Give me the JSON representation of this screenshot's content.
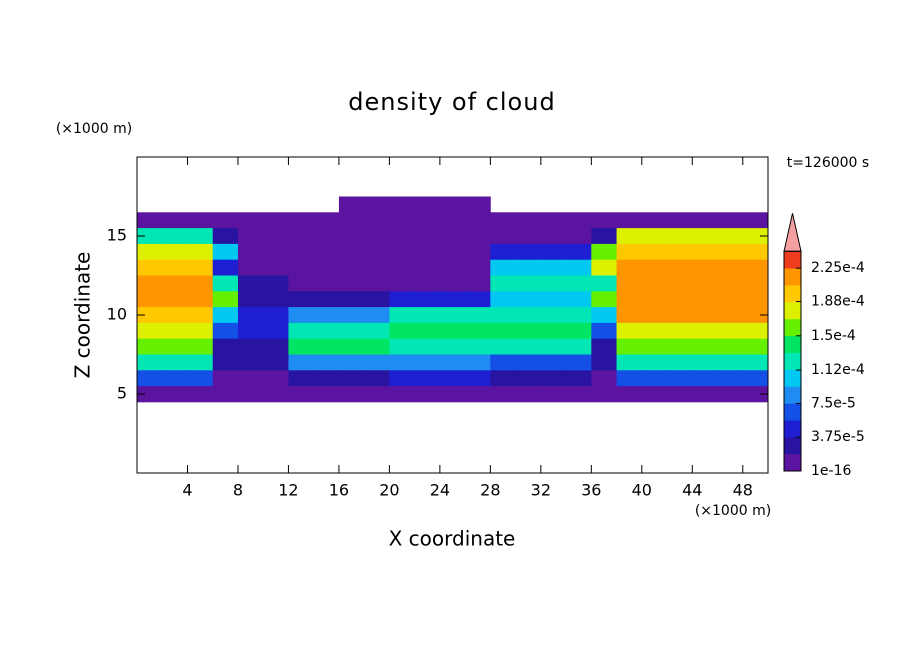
{
  "chart_data": {
    "type": "contour",
    "title": "density of cloud",
    "x_label": "X coordinate",
    "y_label": "Z coordinate",
    "x_unit": "(×1000 m)",
    "y_unit": "(×1000 m)",
    "time_label": "t=126000 s",
    "xlim": [
      0,
      50
    ],
    "ylim": [
      0,
      20
    ],
    "xticks": [
      4,
      8,
      12,
      16,
      20,
      24,
      28,
      32,
      36,
      40,
      44,
      48
    ],
    "yticks": [
      5,
      10,
      15
    ],
    "x": [
      1,
      3,
      5,
      7,
      9,
      11,
      13,
      15,
      17,
      19,
      21,
      23,
      25,
      27,
      29,
      31,
      33,
      35,
      37,
      39,
      41,
      43,
      45,
      47,
      49
    ],
    "y": [
      17,
      16,
      15,
      14,
      13,
      12,
      11,
      10,
      9,
      8,
      7,
      6,
      5
    ],
    "z": [
      [
        null,
        null,
        null,
        null,
        null,
        null,
        null,
        null,
        1e-05,
        1e-05,
        1e-05,
        1e-05,
        1e-05,
        1e-05,
        null,
        null,
        null,
        null,
        null,
        null,
        null,
        null,
        null,
        null,
        null
      ],
      [
        1e-05,
        1e-05,
        1e-05,
        1e-05,
        1e-05,
        1e-05,
        1e-05,
        1e-05,
        1e-05,
        1e-05,
        1e-05,
        1e-05,
        1e-05,
        1e-05,
        1e-05,
        1e-05,
        1e-05,
        1e-05,
        1e-05,
        1e-05,
        1e-05,
        1e-05,
        1e-05,
        1e-05,
        1e-05
      ],
      [
        0.00012,
        0.00012,
        0.00012,
        2e-05,
        1e-05,
        1e-05,
        1e-05,
        1e-05,
        1e-05,
        1e-05,
        1e-05,
        1e-05,
        1e-05,
        1e-05,
        1e-05,
        1e-05,
        1e-05,
        1e-05,
        2e-05,
        0.00017,
        0.00017,
        0.00017,
        0.00017,
        0.00017,
        0.00017
      ],
      [
        0.00018,
        0.00018,
        0.00018,
        0.0001,
        1e-05,
        1e-05,
        1e-05,
        1e-05,
        1e-05,
        1e-05,
        1e-05,
        1e-05,
        1e-05,
        1e-05,
        5e-05,
        5e-05,
        5e-05,
        5e-05,
        0.00016,
        0.00019,
        0.00019,
        0.00019,
        0.00019,
        0.00019,
        0.00019
      ],
      [
        0.00019,
        0.00019,
        0.00019,
        4e-05,
        1e-05,
        1e-05,
        1e-05,
        1e-05,
        1e-05,
        1e-05,
        1e-05,
        1e-05,
        1e-05,
        1e-05,
        0.0001,
        0.0001,
        0.0001,
        0.0001,
        0.00018,
        0.00021,
        0.00021,
        0.00021,
        0.00021,
        0.00021,
        0.00021
      ],
      [
        0.00021,
        0.00021,
        0.00021,
        0.00013,
        2e-05,
        2e-05,
        1e-05,
        1e-05,
        1e-05,
        1e-05,
        1e-05,
        1e-05,
        1e-05,
        1e-05,
        0.00013,
        0.00013,
        0.00013,
        0.00013,
        0.00012,
        0.00021,
        0.00021,
        0.00021,
        0.00021,
        0.00021,
        0.00021
      ],
      [
        0.00021,
        0.00021,
        0.00021,
        0.00015,
        3e-05,
        3e-05,
        2e-05,
        2e-05,
        2e-05,
        2e-05,
        5e-05,
        5e-05,
        5e-05,
        5e-05,
        0.00011,
        0.00011,
        0.00011,
        0.00011,
        0.00015,
        0.00021,
        0.00021,
        0.00021,
        0.00021,
        0.00021,
        0.00021
      ],
      [
        0.00019,
        0.00019,
        0.00019,
        0.0001,
        5e-05,
        5e-05,
        8e-05,
        8e-05,
        8e-05,
        8e-05,
        0.00012,
        0.00012,
        0.00012,
        0.00012,
        0.00013,
        0.00013,
        0.00013,
        0.00013,
        0.0001,
        0.00021,
        0.00021,
        0.00021,
        0.00021,
        0.00021,
        0.00021
      ],
      [
        0.00018,
        0.00018,
        0.00018,
        6e-05,
        4e-05,
        4e-05,
        0.00013,
        0.00013,
        0.00013,
        0.00013,
        0.000145,
        0.000145,
        0.000145,
        0.000145,
        0.00014,
        0.00014,
        0.00014,
        0.00014,
        6e-05,
        0.000185,
        0.000185,
        0.000185,
        0.000185,
        0.000185,
        0.000185
      ],
      [
        0.00016,
        0.00016,
        0.00016,
        3e-05,
        3e-05,
        3e-05,
        0.00014,
        0.00014,
        0.00014,
        0.00014,
        0.00013,
        0.00013,
        0.00013,
        0.00013,
        0.00012,
        0.00012,
        0.00012,
        0.00012,
        3e-05,
        0.00016,
        0.00016,
        0.00016,
        0.00016,
        0.00016,
        0.00016
      ],
      [
        0.00012,
        0.00012,
        0.00012,
        2e-05,
        2e-05,
        2e-05,
        8e-05,
        8e-05,
        8e-05,
        8e-05,
        9e-05,
        9e-05,
        9e-05,
        9e-05,
        7e-05,
        7e-05,
        7e-05,
        7e-05,
        2e-05,
        0.00012,
        0.00012,
        0.00012,
        0.00012,
        0.00012,
        0.00012
      ],
      [
        6e-05,
        6e-05,
        6e-05,
        1e-05,
        1e-05,
        1e-05,
        3e-05,
        3e-05,
        3e-05,
        3e-05,
        4e-05,
        4e-05,
        4e-05,
        4e-05,
        3e-05,
        3e-05,
        3e-05,
        3e-05,
        1e-05,
        6e-05,
        6e-05,
        6e-05,
        6e-05,
        6e-05,
        6e-05
      ],
      [
        1e-05,
        1e-05,
        1e-05,
        1e-05,
        1e-05,
        1e-05,
        1e-05,
        1e-05,
        1e-05,
        1e-05,
        1e-05,
        1e-05,
        1e-05,
        1e-05,
        1e-05,
        1e-05,
        1e-05,
        1e-05,
        1e-05,
        1e-05,
        1e-05,
        1e-05,
        1e-05,
        1e-05,
        1e-05
      ]
    ],
    "levels": [
      1e-16,
      1.875e-05,
      3.75e-05,
      5.625e-05,
      7.5e-05,
      9.375e-05,
      0.0001125,
      0.00013125,
      0.00015,
      0.00016875,
      0.0001875,
      0.00020625,
      0.000225,
      0.00024375
    ],
    "colors": [
      "#5a14a0",
      "#2814a0",
      "#1e1ed2",
      "#1450e6",
      "#1e8cf0",
      "#00c8f0",
      "#00e6b4",
      "#00e664",
      "#64f000",
      "#dcf000",
      "#ffc800",
      "#ff9600",
      "#f03c1e"
    ],
    "extend_color": "#f4a0a0",
    "colorbar_ticks": [
      1e-16,
      {
        "value": 3.75e-05,
        "label": "3.75e-5"
      },
      {
        "value": 7.5e-05,
        "label": "7.5e-5"
      },
      {
        "value": 0.000112,
        "label": "1.12e-4"
      },
      {
        "value": 0.00015,
        "label": "1.5e-4"
      },
      {
        "value": 0.000188,
        "label": "1.88e-4"
      },
      {
        "value": 0.000225,
        "label": "2.25e-4"
      }
    ]
  }
}
